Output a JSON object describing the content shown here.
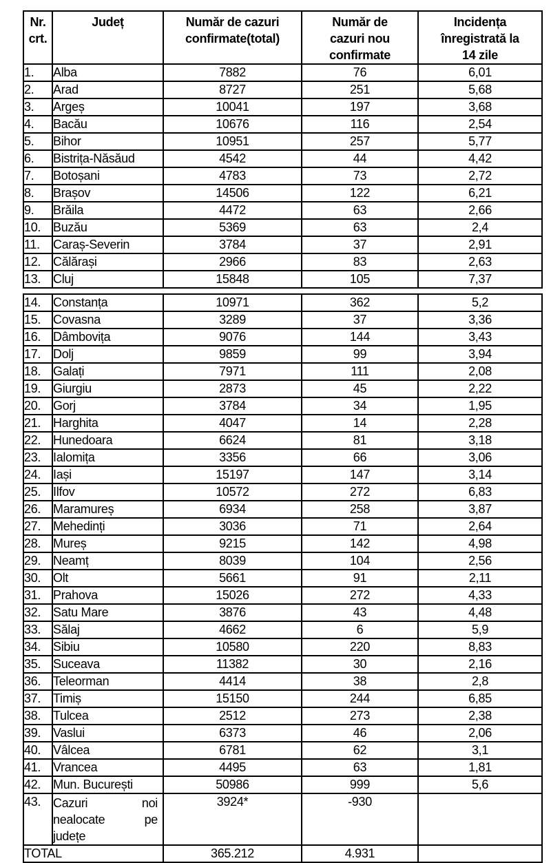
{
  "table": {
    "columns": [
      {
        "id": "nr",
        "label": "Nr.\ncrt."
      },
      {
        "id": "judet",
        "label": "Județ"
      },
      {
        "id": "total",
        "label": "Număr de cazuri\nconfirmate(total)"
      },
      {
        "id": "noi",
        "label": "Număr de\ncazuri nou\nconfirmate"
      },
      {
        "id": "incidenta",
        "label": "Incidența\nînregistrată la\n14 zile"
      }
    ],
    "section1": [
      {
        "nr": "1.",
        "judet": "Alba",
        "total": "7882",
        "noi": "76",
        "incidenta": "6,01"
      },
      {
        "nr": "2.",
        "judet": "Arad",
        "total": "8727",
        "noi": "251",
        "incidenta": "5,68"
      },
      {
        "nr": "3.",
        "judet": "Argeș",
        "total": "10041",
        "noi": "197",
        "incidenta": "3,68"
      },
      {
        "nr": "4.",
        "judet": "Bacău",
        "total": "10676",
        "noi": "116",
        "incidenta": "2,54"
      },
      {
        "nr": "5.",
        "judet": "Bihor",
        "total": "10951",
        "noi": "257",
        "incidenta": "5,77"
      },
      {
        "nr": "6.",
        "judet": "Bistrița-Năsăud",
        "total": "4542",
        "noi": "44",
        "incidenta": "4,42"
      },
      {
        "nr": "7.",
        "judet": "Botoșani",
        "total": "4783",
        "noi": "73",
        "incidenta": "2,72"
      },
      {
        "nr": "8.",
        "judet": "Brașov",
        "total": "14506",
        "noi": "122",
        "incidenta": "6,21"
      },
      {
        "nr": "9.",
        "judet": "Brăila",
        "total": "4472",
        "noi": "63",
        "incidenta": "2,66"
      },
      {
        "nr": "10.",
        "judet": "Buzău",
        "total": "5369",
        "noi": "63",
        "incidenta": "2,4"
      },
      {
        "nr": "11.",
        "judet": "Caraș-Severin",
        "total": "3784",
        "noi": "37",
        "incidenta": "2,91"
      },
      {
        "nr": "12.",
        "judet": "Călărași",
        "total": "2966",
        "noi": "83",
        "incidenta": "2,63"
      },
      {
        "nr": "13.",
        "judet": "Cluj",
        "total": "15848",
        "noi": "105",
        "incidenta": "7,37"
      }
    ],
    "section2": [
      {
        "nr": "14.",
        "judet": "Constanța",
        "total": "10971",
        "noi": "362",
        "incidenta": "5,2"
      },
      {
        "nr": "15.",
        "judet": "Covasna",
        "total": "3289",
        "noi": "37",
        "incidenta": "3,36"
      },
      {
        "nr": "16.",
        "judet": "Dâmbovița",
        "total": "9076",
        "noi": "144",
        "incidenta": "3,43"
      },
      {
        "nr": "17.",
        "judet": "Dolj",
        "total": "9859",
        "noi": "99",
        "incidenta": "3,94"
      },
      {
        "nr": "18.",
        "judet": "Galați",
        "total": "7971",
        "noi": "111",
        "incidenta": "2,08"
      },
      {
        "nr": "19.",
        "judet": "Giurgiu",
        "total": "2873",
        "noi": "45",
        "incidenta": "2,22"
      },
      {
        "nr": "20.",
        "judet": "Gorj",
        "total": "3784",
        "noi": "34",
        "incidenta": "1,95"
      },
      {
        "nr": "21.",
        "judet": "Harghita",
        "total": "4047",
        "noi": "14",
        "incidenta": "2,28"
      },
      {
        "nr": "22.",
        "judet": "Hunedoara",
        "total": "6624",
        "noi": "81",
        "incidenta": "3,18"
      },
      {
        "nr": "23.",
        "judet": "Ialomița",
        "total": "3356",
        "noi": "66",
        "incidenta": "3,06"
      },
      {
        "nr": "24.",
        "judet": "Iași",
        "total": "15197",
        "noi": "147",
        "incidenta": "3,14"
      },
      {
        "nr": "25.",
        "judet": "Ilfov",
        "total": "10572",
        "noi": "272",
        "incidenta": "6,83"
      },
      {
        "nr": "26.",
        "judet": "Maramureș",
        "total": "6934",
        "noi": "258",
        "incidenta": "3,87"
      },
      {
        "nr": "27.",
        "judet": "Mehedinți",
        "total": "3036",
        "noi": "71",
        "incidenta": "2,64"
      },
      {
        "nr": "28.",
        "judet": "Mureș",
        "total": "9215",
        "noi": "142",
        "incidenta": "4,98"
      },
      {
        "nr": "29.",
        "judet": "Neamț",
        "total": "8039",
        "noi": "104",
        "incidenta": "2,56"
      },
      {
        "nr": "30.",
        "judet": "Olt",
        "total": "5661",
        "noi": "91",
        "incidenta": "2,11"
      },
      {
        "nr": "31.",
        "judet": "Prahova",
        "total": "15026",
        "noi": "272",
        "incidenta": "4,33"
      },
      {
        "nr": "32.",
        "judet": "Satu Mare",
        "total": "3876",
        "noi": "43",
        "incidenta": "4,48"
      },
      {
        "nr": "33.",
        "judet": "Sălaj",
        "total": "4662",
        "noi": "6",
        "incidenta": "5,9"
      },
      {
        "nr": "34.",
        "judet": "Sibiu",
        "total": "10580",
        "noi": "220",
        "incidenta": "8,83"
      },
      {
        "nr": "35.",
        "judet": "Suceava",
        "total": "11382",
        "noi": "30",
        "incidenta": "2,16"
      },
      {
        "nr": "36.",
        "judet": "Teleorman",
        "total": "4414",
        "noi": "38",
        "incidenta": "2,8"
      },
      {
        "nr": "37.",
        "judet": "Timiș",
        "total": "15150",
        "noi": "244",
        "incidenta": "6,85"
      },
      {
        "nr": "38.",
        "judet": "Tulcea",
        "total": "2512",
        "noi": "273",
        "incidenta": "2,38"
      },
      {
        "nr": "39.",
        "judet": "Vaslui",
        "total": "6373",
        "noi": "46",
        "incidenta": "2,06"
      },
      {
        "nr": "40.",
        "judet": "Vâlcea",
        "total": "6781",
        "noi": "62",
        "incidenta": "3,1"
      },
      {
        "nr": "41.",
        "judet": "Vrancea",
        "total": "4495",
        "noi": "63",
        "incidenta": "1,81"
      },
      {
        "nr": "42.",
        "judet": "Mun. București",
        "total": "50986",
        "noi": "999",
        "incidenta": "5,6"
      },
      {
        "nr": "43.",
        "judet": "Cazuri noi nealocate pe județe",
        "judet_lines": [
          "Cazuri noi",
          "nealocate pe",
          "județe"
        ],
        "total": "3924*",
        "noi": "-930",
        "incidenta": ""
      }
    ],
    "total_row": {
      "label": "TOTAL",
      "total": "365.212",
      "noi": "4.931",
      "incidenta": ""
    }
  }
}
